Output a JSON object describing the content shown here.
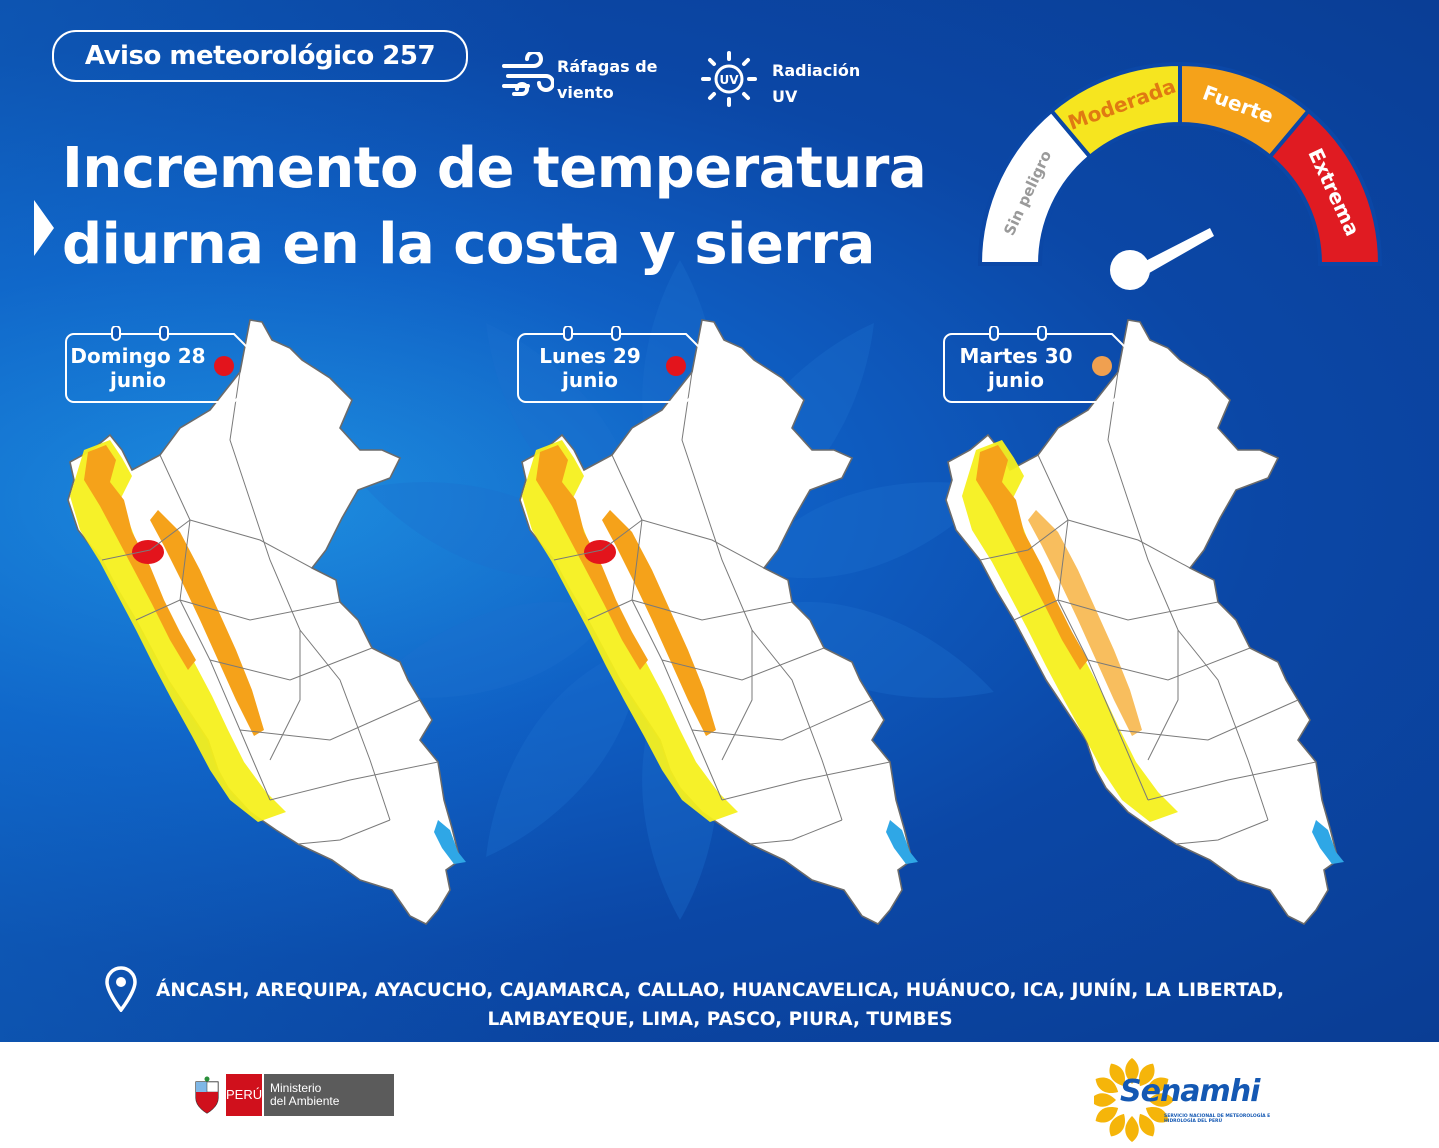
{
  "header": {
    "badge": "Aviso meteorológico 257",
    "legend": [
      {
        "icon": "wind-gust-icon",
        "label_line1": "Ráfagas de",
        "label_line2": "viento"
      },
      {
        "icon": "uv-sun-icon",
        "icon_text": "UV",
        "label_line1": "Radiación",
        "label_line2": "UV"
      }
    ],
    "title_line1": "Incremento de temperatura",
    "title_line2": "diurna en la costa y sierra"
  },
  "gauge": {
    "levels": [
      {
        "label": "Sin peligro",
        "color": "#ffffff",
        "text_color": "#9a9a9a"
      },
      {
        "label": "Moderada",
        "color": "#f6e51f",
        "text_color": "#e07a12"
      },
      {
        "label": "Fuerte",
        "color": "#f5a21a",
        "text_color": "#ffffff"
      },
      {
        "label": "Extrema",
        "color": "#e01b22",
        "text_color": "#ffffff"
      }
    ],
    "needle_level": "Extrema"
  },
  "maps": [
    {
      "day": "Domingo 28",
      "month": "junio",
      "level": "Extrema",
      "dot_color": "#e3141c"
    },
    {
      "day": "Lunes 29",
      "month": "junio",
      "level": "Extrema",
      "dot_color": "#e3141c"
    },
    {
      "day": "Martes 30",
      "month": "junio",
      "level": "Fuerte",
      "dot_color": "#f0a050"
    }
  ],
  "regions": {
    "line1": "ÁNCASH, AREQUIPA, AYACUCHO, CAJAMARCA, CALLAO, HUANCAVELICA, HUÁNUCO, ICA, JUNÍN, LA LIBERTAD,",
    "line2": "LAMBAYEQUE, LIMA, PASCO, PIURA, TUMBES"
  },
  "footer": {
    "peru_label": "PERÚ",
    "ministry_line1": "Ministerio",
    "ministry_line2": "del Ambiente",
    "senamhi_name": "Senamhi",
    "senamhi_sub": "SERVICIO NACIONAL DE METEOROLOGÍA E HIDROLOGÍA DEL PERÚ"
  },
  "colors": {
    "background": "#0b47a6",
    "yellow": "#f6f01e",
    "orange": "#f5a21a",
    "red": "#e3141c",
    "lake": "#2fa7e6"
  }
}
